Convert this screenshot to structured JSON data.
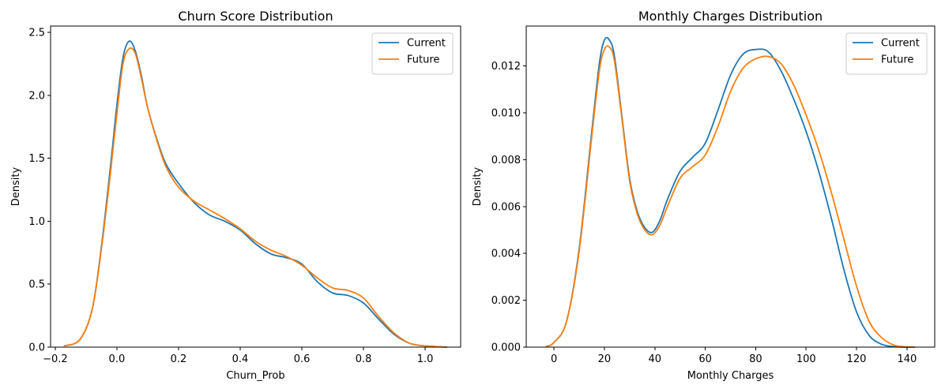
{
  "chart_data": [
    {
      "type": "line",
      "title": "Churn Score Distribution",
      "xlabel": "Churn_Prob",
      "ylabel": "Density",
      "xlim": [
        -0.215,
        1.115
      ],
      "ylim": [
        0,
        2.55
      ],
      "xticks": [
        -0.2,
        0.0,
        0.2,
        0.4,
        0.6,
        0.8,
        1.0
      ],
      "xtick_labels": [
        "−0.2",
        "0.0",
        "0.2",
        "0.4",
        "0.6",
        "0.8",
        "1.0"
      ],
      "yticks": [
        0.0,
        0.5,
        1.0,
        1.5,
        2.0,
        2.5
      ],
      "ytick_labels": [
        "0.0",
        "0.5",
        "1.0",
        "1.5",
        "2.0",
        "2.5"
      ],
      "grid": false,
      "legend_position": "top-right",
      "series": [
        {
          "name": "Current",
          "color": "#1f77b4",
          "x": [
            -0.17,
            -0.12,
            -0.08,
            -0.05,
            -0.02,
            0.0,
            0.02,
            0.04,
            0.06,
            0.08,
            0.1,
            0.13,
            0.16,
            0.2,
            0.25,
            0.3,
            0.35,
            0.4,
            0.45,
            0.5,
            0.55,
            0.6,
            0.65,
            0.7,
            0.75,
            0.8,
            0.85,
            0.9,
            0.95,
            1.0,
            1.07
          ],
          "y": [
            0.01,
            0.06,
            0.3,
            0.8,
            1.45,
            1.92,
            2.3,
            2.43,
            2.35,
            2.15,
            1.9,
            1.65,
            1.45,
            1.3,
            1.15,
            1.05,
            1.0,
            0.93,
            0.82,
            0.74,
            0.71,
            0.66,
            0.52,
            0.43,
            0.41,
            0.35,
            0.22,
            0.1,
            0.03,
            0.01,
            0.0
          ]
        },
        {
          "name": "Future",
          "color": "#ff7f0e",
          "x": [
            -0.17,
            -0.12,
            -0.08,
            -0.05,
            -0.02,
            0.0,
            0.02,
            0.04,
            0.06,
            0.08,
            0.1,
            0.13,
            0.16,
            0.2,
            0.25,
            0.3,
            0.35,
            0.4,
            0.45,
            0.5,
            0.55,
            0.6,
            0.65,
            0.7,
            0.75,
            0.8,
            0.85,
            0.9,
            0.95,
            1.0,
            1.07
          ],
          "y": [
            0.01,
            0.06,
            0.3,
            0.78,
            1.4,
            1.85,
            2.25,
            2.37,
            2.33,
            2.13,
            1.9,
            1.64,
            1.43,
            1.27,
            1.16,
            1.09,
            1.02,
            0.94,
            0.84,
            0.77,
            0.72,
            0.65,
            0.55,
            0.47,
            0.45,
            0.39,
            0.24,
            0.11,
            0.03,
            0.01,
            0.0
          ]
        }
      ]
    },
    {
      "type": "line",
      "title": "Monthly Charges Distribution",
      "xlabel": "Monthly Charges",
      "ylabel": "Density",
      "xlim": [
        -11,
        151
      ],
      "ylim": [
        0,
        0.0137
      ],
      "xticks": [
        0,
        20,
        40,
        60,
        80,
        100,
        120,
        140
      ],
      "xtick_labels": [
        "0",
        "20",
        "40",
        "60",
        "80",
        "100",
        "120",
        "140"
      ],
      "yticks": [
        0.0,
        0.002,
        0.004,
        0.006,
        0.008,
        0.01,
        0.012
      ],
      "ytick_labels": [
        "0.000",
        "0.002",
        "0.004",
        "0.006",
        "0.008",
        "0.010",
        "0.012"
      ],
      "grid": false,
      "legend_position": "top-right",
      "series": [
        {
          "name": "Current",
          "color": "#1f77b4",
          "x": [
            -3,
            0,
            5,
            10,
            15,
            18,
            20,
            22,
            24,
            27,
            30,
            33,
            36,
            39,
            42,
            45,
            50,
            55,
            60,
            65,
            70,
            75,
            80,
            85,
            90,
            95,
            100,
            105,
            110,
            115,
            120,
            125,
            130,
            135,
            140,
            143
          ],
          "y": [
            3e-05,
            0.0002,
            0.0011,
            0.0042,
            0.0092,
            0.0121,
            0.0131,
            0.0131,
            0.0124,
            0.0098,
            0.0072,
            0.0058,
            0.0051,
            0.0049,
            0.0054,
            0.0063,
            0.0075,
            0.0081,
            0.0087,
            0.0101,
            0.0116,
            0.0125,
            0.0127,
            0.0126,
            0.0118,
            0.0106,
            0.0092,
            0.0075,
            0.0055,
            0.0033,
            0.0015,
            0.0005,
            0.00012,
            2e-05,
            0.0,
            0.0
          ]
        },
        {
          "name": "Future",
          "color": "#ff7f0e",
          "x": [
            -3,
            0,
            5,
            10,
            15,
            18,
            20,
            22,
            24,
            27,
            30,
            33,
            36,
            39,
            42,
            45,
            50,
            55,
            60,
            65,
            70,
            75,
            80,
            85,
            90,
            95,
            100,
            105,
            110,
            115,
            120,
            125,
            130,
            135,
            140,
            143
          ],
          "y": [
            3e-05,
            0.0002,
            0.0011,
            0.0041,
            0.009,
            0.0118,
            0.0127,
            0.0128,
            0.0122,
            0.0097,
            0.0071,
            0.0057,
            0.005,
            0.0048,
            0.0052,
            0.006,
            0.0072,
            0.0077,
            0.0082,
            0.0094,
            0.0109,
            0.0119,
            0.0123,
            0.0124,
            0.0121,
            0.0112,
            0.0099,
            0.0084,
            0.0066,
            0.0046,
            0.0026,
            0.0011,
            0.0004,
            8e-05,
            1e-05,
            0.0
          ]
        }
      ]
    }
  ]
}
